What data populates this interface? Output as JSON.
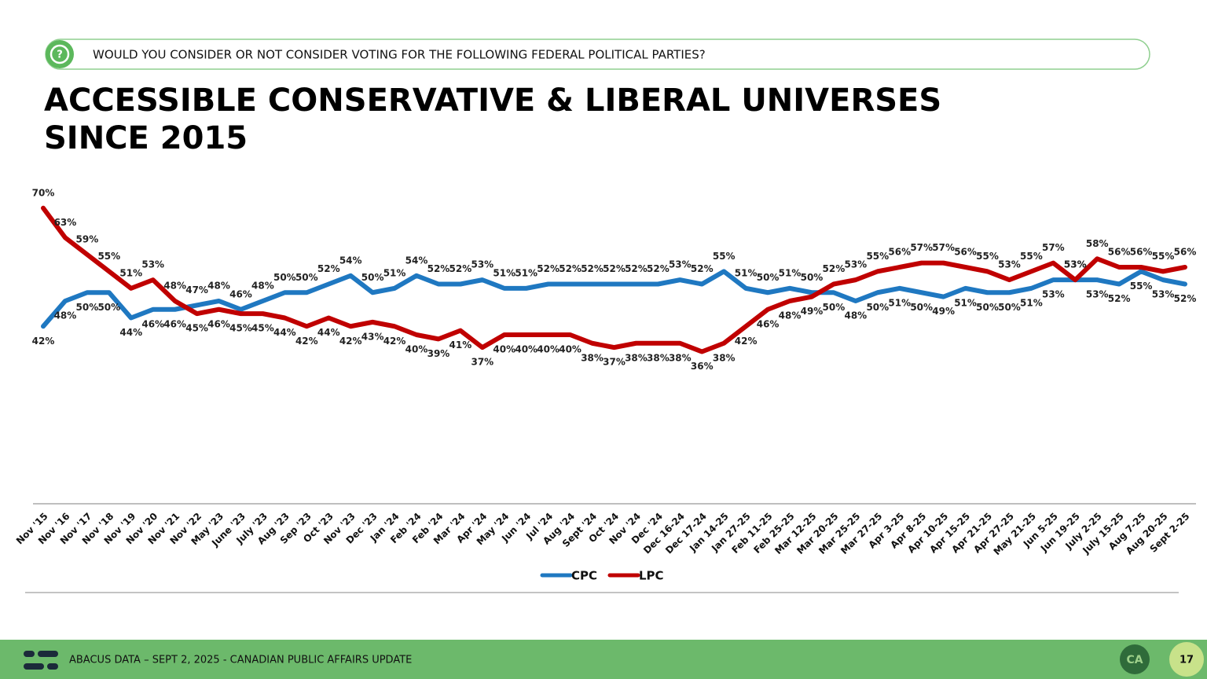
{
  "header": {
    "question": "WOULD YOU CONSIDER OR NOT CONSIDER VOTING FOR THE FOLLOWING FEDERAL POLITICAL PARTIES?"
  },
  "chart_data": {
    "type": "line",
    "title": "ACCESSIBLE CONSERVATIVE & LIBERAL UNIVERSES SINCE 2015",
    "categories": [
      "Nov '15",
      "Nov '16",
      "Nov '17",
      "Nov '18",
      "Nov '19",
      "Nov '20",
      "Nov '21",
      "Nov '22",
      "May '23",
      "June '23",
      "July '23",
      "Aug '23",
      "Sep '23",
      "Oct '23",
      "Nov '23",
      "Dec '23",
      "Jan '24",
      "Feb '24",
      "Feb '24",
      "Mar '24",
      "Apr '24",
      "May '24",
      "Jun '24",
      "Jul '24",
      "Aug '24",
      "Sept '24",
      "Oct '24",
      "Nov '24",
      "Dec '24",
      "Dec 16-24",
      "Dec 17-24",
      "Jan 14-25",
      "Jan 27-25",
      "Feb 11-25",
      "Feb 25-25",
      "Mar 12-25",
      "Mar 20-25",
      "Mar 25-25",
      "Mar 27-25",
      "Apr 3-25",
      "Apr 8-25",
      "Apr 10-25",
      "Apr 15-25",
      "Apr 21-25",
      "Apr 27-25",
      "May 21-25",
      "Jun 5-25",
      "Jun 19-25",
      "July 2-25",
      "July 15-25",
      "Aug 7-25",
      "Aug 20-25",
      "Sept 2-25"
    ],
    "series": [
      {
        "name": "CPC",
        "color": "#1f78c1",
        "values": [
          42,
          48,
          50,
          50,
          44,
          46,
          46,
          47,
          48,
          46,
          48,
          50,
          50,
          52,
          54,
          50,
          51,
          54,
          52,
          52,
          53,
          51,
          51,
          52,
          52,
          52,
          52,
          52,
          52,
          53,
          52,
          55,
          51,
          50,
          51,
          50,
          50,
          48,
          50,
          51,
          50,
          49,
          51,
          50,
          50,
          51,
          53,
          53,
          53,
          52,
          55,
          53,
          52
        ],
        "value_labels": [
          "42%",
          "48%",
          "50%",
          "50%",
          "44%",
          "46%",
          "46%",
          "47%",
          "48%",
          "46%",
          "48%",
          "50%",
          "50%",
          "52%",
          "54%",
          "50%",
          "51%",
          "54%",
          "52%",
          "52%",
          "53%",
          "51%",
          "51%",
          "52%",
          "52%",
          "52%",
          "52%",
          "52%",
          "52%",
          "53%",
          "52%",
          "55%",
          "51%",
          "50%",
          "51%",
          "50%",
          "50%",
          "48%",
          "50%",
          "51%",
          "50%",
          "49%",
          "51%",
          "50%",
          "50%",
          "51%",
          "53%",
          "53%",
          "53%",
          "52%",
          "55%",
          "53%",
          "52%"
        ]
      },
      {
        "name": "LPC",
        "color": "#c00000",
        "values": [
          70,
          63,
          59,
          55,
          51,
          53,
          48,
          45,
          46,
          45,
          45,
          44,
          42,
          44,
          42,
          43,
          42,
          40,
          39,
          41,
          37,
          40,
          40,
          40,
          40,
          38,
          37,
          38,
          38,
          38,
          36,
          38,
          42,
          46,
          48,
          49,
          52,
          53,
          55,
          56,
          57,
          57,
          56,
          55,
          53,
          55,
          57,
          53,
          58,
          56,
          56,
          55,
          56
        ],
        "value_labels": [
          "70%",
          "63%",
          "59%",
          "55%",
          "51%",
          "53%",
          "48%",
          "45%",
          "46%",
          "45%",
          "45%",
          "44%",
          "42%",
          "44%",
          "42%",
          "43%",
          "42%",
          "40%",
          "39%",
          "41%",
          "37%",
          "40%",
          "40%",
          "40%",
          "40%",
          "38%",
          "37%",
          "38%",
          "38%",
          "38%",
          "36%",
          "38%",
          "42%",
          "46%",
          "48%",
          "49%",
          "52%",
          "53%",
          "55%",
          "56%",
          "57%",
          "57%",
          "56%",
          "55%",
          "53%",
          "55%",
          "57%",
          "53%",
          "58%",
          "56%",
          "56%",
          "55%",
          "56%"
        ]
      }
    ],
    "ylim": [
      0,
      80
    ]
  },
  "footer": {
    "text": "ABACUS DATA – SEPT 2, 2025 - CANADIAN PUBLIC AFFAIRS UPDATE",
    "page": "17"
  }
}
